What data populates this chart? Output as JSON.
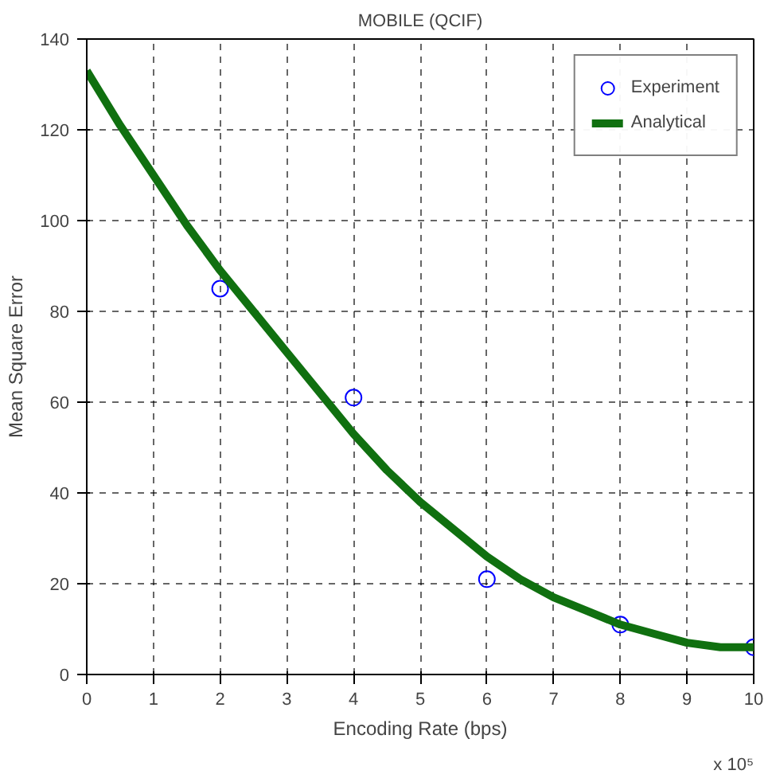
{
  "chart_data": {
    "type": "line",
    "title": "MOBILE (QCIF)",
    "xlabel": "Encoding Rate (bps)",
    "ylabel": "Mean Square Error",
    "annotations": [
      "x 10⁵"
    ],
    "xlim": [
      0,
      10
    ],
    "ylim": [
      0,
      140
    ],
    "xticks": [
      0,
      1,
      2,
      3,
      4,
      5,
      6,
      7,
      8,
      9,
      10
    ],
    "yticks": [
      0,
      20,
      40,
      60,
      80,
      100,
      120,
      140
    ],
    "grid": true,
    "legend": "top right",
    "series": [
      {
        "name": "Experiment",
        "type": "scatter",
        "marker": "circle",
        "color": "#0000ff",
        "x": [
          2,
          4,
          6,
          8,
          10
        ],
        "values": [
          85,
          61,
          21,
          11,
          6
        ]
      },
      {
        "name": "Analytical",
        "color": "#107010",
        "x": [
          0,
          0.5,
          1,
          1.5,
          2,
          2.5,
          3,
          3.5,
          4,
          4.5,
          5,
          5.5,
          6,
          6.5,
          7,
          7.5,
          8,
          8.5,
          9,
          9.5,
          10
        ],
        "values": [
          133,
          121,
          110,
          99,
          89,
          80,
          71,
          62,
          53,
          45,
          38,
          32,
          26,
          21,
          17,
          14,
          11,
          9,
          7,
          6,
          6
        ]
      }
    ]
  }
}
